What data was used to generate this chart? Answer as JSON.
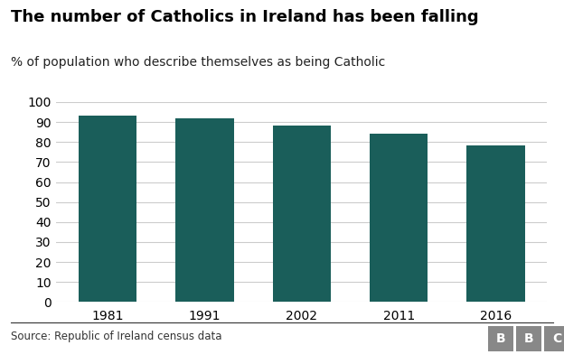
{
  "title": "The number of Catholics in Ireland has been falling",
  "subtitle": "% of population who describe themselves as being Catholic",
  "categories": [
    "1981",
    "1991",
    "2002",
    "2011",
    "2016"
  ],
  "values": [
    93,
    92,
    88.4,
    84.2,
    78.3
  ],
  "bar_color": "#1a5e5a",
  "ylim": [
    0,
    100
  ],
  "yticks": [
    0,
    10,
    20,
    30,
    40,
    50,
    60,
    70,
    80,
    90,
    100
  ],
  "source_text": "Source: Republic of Ireland census data",
  "bbc_text": "BBC",
  "background_color": "#ffffff",
  "title_fontsize": 13,
  "subtitle_fontsize": 10,
  "tick_fontsize": 10,
  "source_fontsize": 8.5,
  "bbc_box_color": "#888888"
}
